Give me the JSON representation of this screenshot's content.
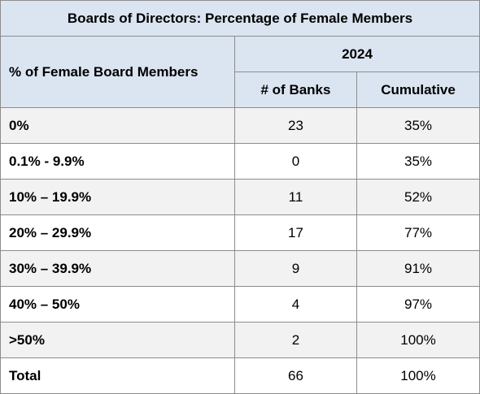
{
  "table": {
    "title": "Boards of Directors: Percentage of Female Members",
    "row_header": "% of Female Board Members",
    "year": "2024",
    "columns": [
      "# of Banks",
      "Cumulative"
    ],
    "rows": [
      {
        "label": "0%",
        "banks": "23",
        "cumulative": "35%"
      },
      {
        "label": "0.1% - 9.9%",
        "banks": "0",
        "cumulative": "35%"
      },
      {
        "label": "10% – 19.9%",
        "banks": "11",
        "cumulative": "52%"
      },
      {
        "label": "20% – 29.9%",
        "banks": "17",
        "cumulative": "77%"
      },
      {
        "label": "30% – 39.9%",
        "banks": "9",
        "cumulative": "91%"
      },
      {
        "label": "40% – 50%",
        "banks": "4",
        "cumulative": "97%"
      },
      {
        "label": ">50%",
        "banks": "2",
        "cumulative": "100%"
      },
      {
        "label": "Total",
        "banks": "66",
        "cumulative": "100%"
      }
    ]
  },
  "colors": {
    "header_bg": "#dbe5f1",
    "shaded_row_bg": "#f2f2f2",
    "border": "#8c8c8c"
  }
}
